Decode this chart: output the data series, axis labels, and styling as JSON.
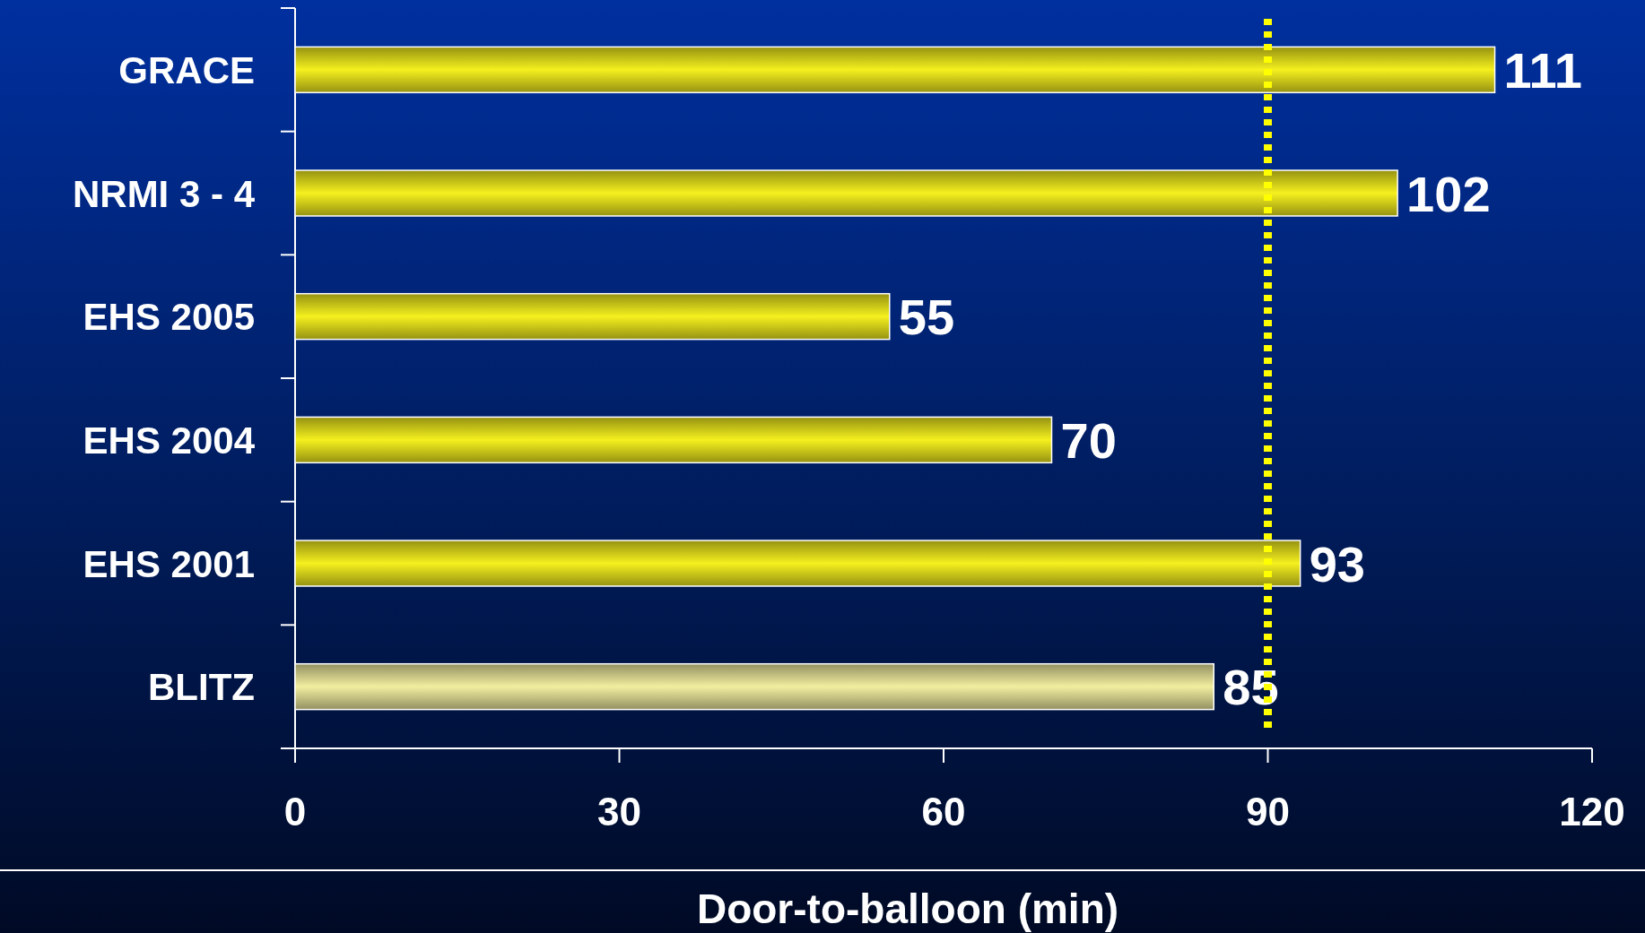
{
  "chart_data": {
    "type": "bar",
    "orientation": "horizontal",
    "categories": [
      "GRACE",
      "NRMI 3 - 4",
      "EHS 2005",
      "EHS 2004",
      "EHS 2001",
      "BLITZ"
    ],
    "values": [
      111,
      102,
      55,
      70,
      93,
      85
    ],
    "colors": [
      "#f5f01e",
      "#f5f01e",
      "#f5f01e",
      "#f5f01e",
      "#f5f01e",
      "#f2eea0"
    ],
    "xlim": [
      0,
      120
    ],
    "xticks": [
      0,
      30,
      60,
      90,
      120
    ],
    "xlabel": "Door-to-balloon (min)",
    "data_labels": true,
    "ref_lines": [
      {
        "axis": "x",
        "value": 90,
        "color": "#ffff00",
        "line_style": "dotted"
      }
    ],
    "grid": false
  }
}
